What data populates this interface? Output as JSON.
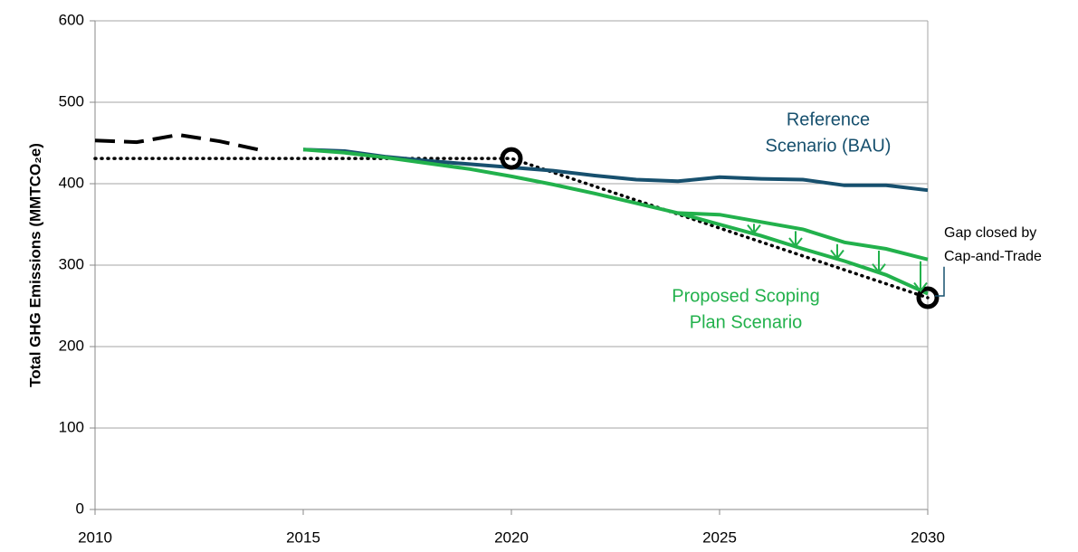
{
  "chart_data": {
    "type": "line",
    "y_label": "Total GHG Emissions (MMTCO₂e)",
    "xlim": [
      2010,
      2030
    ],
    "xticks": [
      2010,
      2015,
      2020,
      2025,
      2030
    ],
    "ylim": [
      0,
      600
    ],
    "yticks": [
      0,
      100,
      200,
      300,
      400,
      500,
      600
    ],
    "grid": true,
    "series": [
      {
        "color": "#000000",
        "style": "dashed",
        "x": [
          2010,
          2011,
          2012,
          2013,
          2014
        ],
        "values": [
          453,
          451,
          460,
          452,
          441
        ]
      },
      {
        "color": "#000000",
        "style": "dotted",
        "x": [
          2010,
          2020,
          2030
        ],
        "values": [
          431,
          431,
          260
        ]
      },
      {
        "color": "#17506e",
        "style": "solid",
        "x": [
          2015,
          2016,
          2017,
          2018,
          2019,
          2020,
          2021,
          2022,
          2023,
          2024,
          2025,
          2026,
          2027,
          2028,
          2029,
          2030
        ],
        "values": [
          442,
          440,
          433,
          428,
          424,
          420,
          416,
          410,
          405,
          403,
          408,
          406,
          405,
          398,
          398,
          392
        ]
      },
      {
        "color": "#22b14c",
        "style": "solid",
        "x": [
          2015,
          2016,
          2017,
          2018,
          2019,
          2020,
          2021,
          2022,
          2023,
          2024,
          2025,
          2026,
          2027,
          2028,
          2029,
          2030
        ],
        "values": [
          442,
          438,
          432,
          425,
          418,
          409,
          399,
          388,
          376,
          364,
          350,
          336,
          320,
          305,
          288,
          265
        ]
      },
      {
        "color": "#22b14c",
        "style": "solid",
        "x": [
          2024,
          2025,
          2026,
          2027,
          2028,
          2029,
          2030
        ],
        "values": [
          364,
          362,
          353,
          344,
          328,
          320,
          307
        ]
      }
    ],
    "annotations": [
      {
        "lines": [
          "Reference",
          "Scenario (BAU)"
        ],
        "color": "#17506e"
      },
      {
        "lines": [
          "Proposed Scoping",
          "Plan Scenario"
        ],
        "color": "#22b14c"
      },
      {
        "lines": [
          "Gap closed by",
          "Cap-and-Trade"
        ],
        "color": "#000000"
      }
    ]
  }
}
